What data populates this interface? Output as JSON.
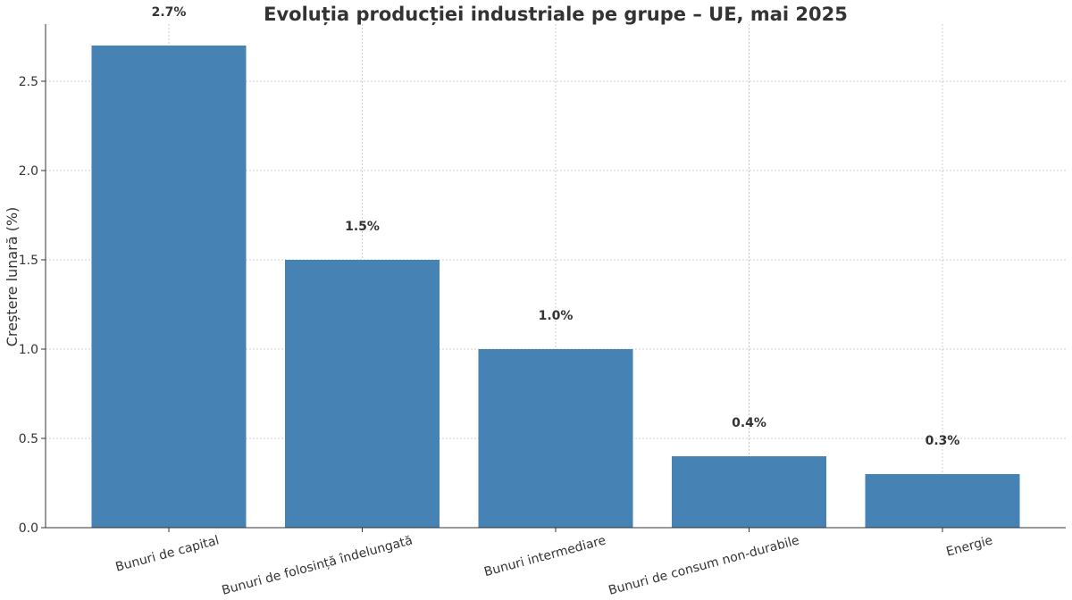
{
  "chart_data": {
    "type": "bar",
    "title": "Evoluția producției industriale pe grupe – UE, mai 2025",
    "xlabel": "",
    "ylabel": "Creștere lunară (%)",
    "categories": [
      "Bunuri de capital",
      "Bunuri de folosință îndelungată",
      "Bunuri intermediare",
      "Bunuri de consum non-durabile",
      "Energie"
    ],
    "values": [
      2.7,
      1.5,
      1.0,
      0.4,
      0.3
    ],
    "data_labels": [
      "2.7%",
      "1.5%",
      "1.0%",
      "0.4%",
      "0.3%"
    ],
    "yticks": [
      "0.0",
      "0.5",
      "1.0",
      "1.5",
      "2.0",
      "2.5"
    ],
    "ylim": [
      0,
      2.82
    ],
    "grid": true,
    "bar_color": "#4682b4"
  }
}
